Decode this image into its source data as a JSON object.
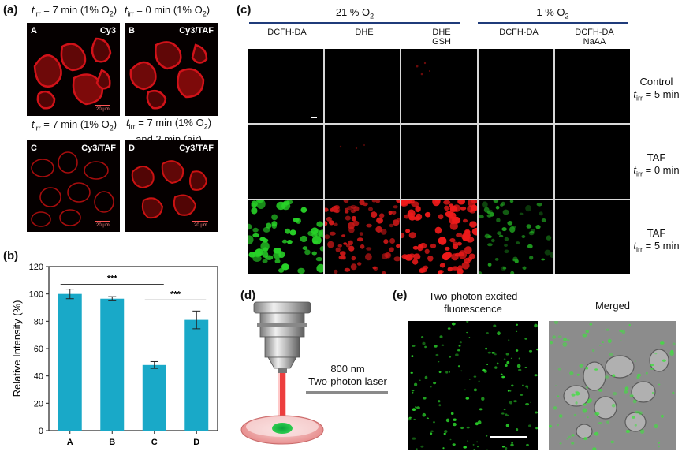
{
  "panel_a": {
    "letter": "(a)",
    "captions": {
      "top_left": {
        "pre": "t",
        "sub": "irr",
        "post": " = 7 min (1% O",
        "sub2": "2",
        "end": ")"
      },
      "top_right": {
        "pre": "t",
        "sub": "irr",
        "post": " = 0 min (1% O",
        "sub2": "2",
        "end": ")"
      },
      "bottom_left": {
        "pre": "t",
        "sub": "irr",
        "post": " = 7 min (1% O",
        "sub2": "2",
        "end": ")"
      },
      "bottom_right_line1": {
        "pre": "t",
        "sub": "irr",
        "post": " = 7 min (1% O",
        "sub2": "2",
        "end": ")"
      },
      "bottom_right_line2": "and 2 min (air)"
    },
    "tiles": [
      {
        "letter": "A",
        "label": "Cy3",
        "scale": "20 μm"
      },
      {
        "letter": "B",
        "label": "Cy3/TAF",
        "scale": ""
      },
      {
        "letter": "C",
        "label": "Cy3/TAF",
        "scale": "20 μm"
      },
      {
        "letter": "D",
        "label": "Cy3/TAF",
        "scale": "20 μm"
      }
    ]
  },
  "panel_b": {
    "letter": "(b)",
    "significance": [
      "***",
      "***"
    ]
  },
  "chart_data": {
    "type": "bar",
    "categories": [
      "A",
      "B",
      "C",
      "D"
    ],
    "values": [
      100,
      96.5,
      48,
      81
    ],
    "errors": [
      3.5,
      1.5,
      2.5,
      6.5
    ],
    "ylabel": "Relative Intensity (%)",
    "xlabel": "",
    "ylim": [
      0,
      120
    ],
    "yticks": [
      0,
      20,
      40,
      60,
      80,
      100,
      120
    ],
    "bar_color": "#19a9c8",
    "significance": [
      {
        "from": "A",
        "to": "C",
        "label": "***"
      },
      {
        "from": "C",
        "to": "D",
        "label": "***"
      }
    ]
  },
  "panel_c": {
    "letter": "(c)",
    "group_21": "21 % O",
    "group_21_sub": "2",
    "group_1": "1 % O",
    "group_1_sub": "2",
    "columns": [
      {
        "line1": "DCFH-DA",
        "line2": ""
      },
      {
        "line1": "DHE",
        "line2": ""
      },
      {
        "line1": "DHE",
        "line2": "GSH"
      },
      {
        "line1": "DCFH-DA",
        "line2": ""
      },
      {
        "line1": "DCFH-DA",
        "line2": "NaAA"
      }
    ],
    "rows": [
      {
        "name": "Control",
        "t": "t",
        "sub": "irr",
        "rest": " = 5 min"
      },
      {
        "name": "TAF",
        "t": "t",
        "sub": "irr",
        "rest": " = 0 min"
      },
      {
        "name": "TAF",
        "t": "t",
        "sub": "irr",
        "rest": " = 5 min"
      }
    ]
  },
  "panel_d": {
    "letter": "(d)",
    "laser_line1": "800 nm",
    "laser_line2": "Two-photon laser"
  },
  "panel_e": {
    "letter": "(e)",
    "left_title_line1": "Two-photon excited",
    "left_title_line2": "fluorescence",
    "right_title": "Merged"
  },
  "colors": {
    "bar": "#19a9c8",
    "red_stain": "#e8141c",
    "green_stain": "#22dd22",
    "group_line": "#1f3b7a",
    "laser": "#e01515"
  }
}
